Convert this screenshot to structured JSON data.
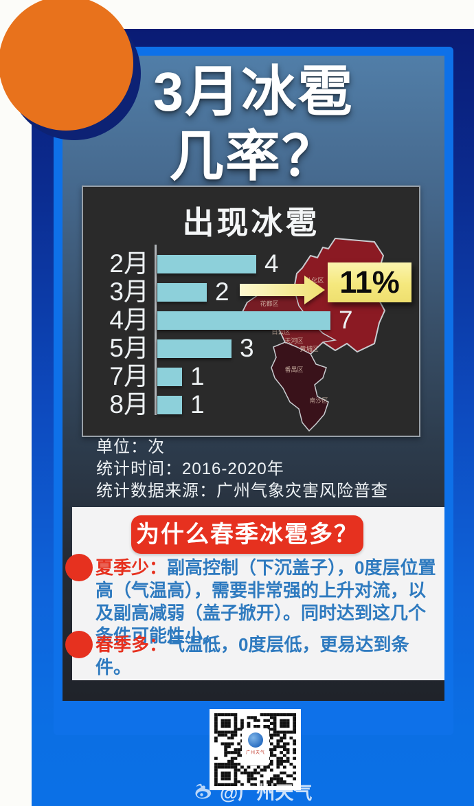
{
  "chart_data": {
    "type": "bar",
    "orientation": "horizontal",
    "title": "出现冰雹",
    "categories": [
      "2月",
      "3月",
      "4月",
      "5月",
      "7月",
      "8月"
    ],
    "values": [
      4,
      2,
      7,
      3,
      1,
      1
    ],
    "unit": "次",
    "xlim": [
      0,
      8
    ],
    "grid": false,
    "bar_color": "#8dd0da",
    "annotation": {
      "category": "3月",
      "label": "11%"
    }
  },
  "poster": {
    "title_line1": "3月冰雹",
    "title_line2": "几率？",
    "highlight_value": "11%",
    "notes": {
      "unit": "单位：次",
      "period": "统计时间：2016-2020年",
      "source": "统计数据来源：广州气象灾害风险普查"
    },
    "map_districts": [
      "从化区",
      "花都区",
      "白云区",
      "天河区",
      "黄埔区",
      "番禺区",
      "南沙区"
    ],
    "qa": {
      "question": "为什么春季冰雹多？",
      "answers": [
        {
          "lead": "夏季少：",
          "body": "副高控制（下沉盖子），0度层位置高（气温高），需要非常强的上升对流，以及副高减弱（盖子掀开）。同时达到这几个条件可能性小。"
        },
        {
          "lead": "春季多：",
          "body": "气温低，0度层低，更易达到条件。"
        }
      ]
    },
    "watermark": "@广州天气",
    "qr_label": "广州天气",
    "colors": {
      "accent_red": "#e6311f",
      "body_blue": "#2e7abf",
      "bar_teal": "#8dd0da",
      "highlight_yellow": "#f5e87d",
      "panel_blue": "#0e71e9",
      "orange": "#e8721c"
    }
  }
}
